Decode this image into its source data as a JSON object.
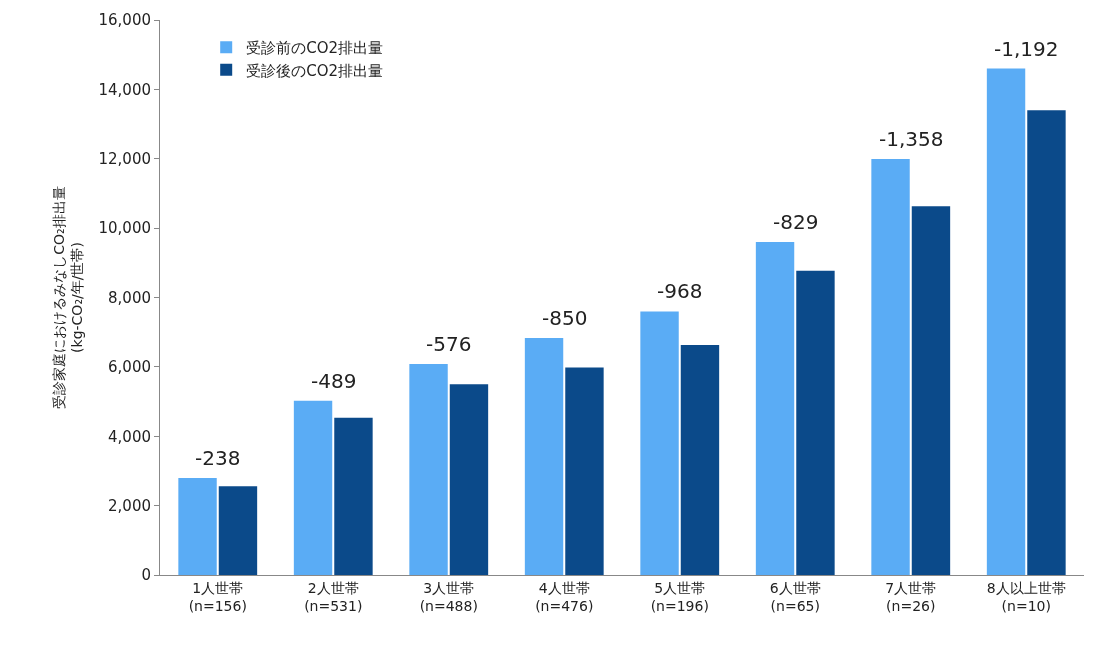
{
  "chart_data": {
    "type": "bar",
    "ylabel": "受診家庭におけるみなしCO₂排出量\n(kg-CO₂/年/世帯)",
    "categories": [
      "1人世帯\n(n=156)",
      "2人世帯\n(n=531)",
      "3人世帯\n(n=488)",
      "4人世帯\n(n=476)",
      "5人世帯\n(n=196)",
      "6人世帯\n(n=65)",
      "7人世帯\n(n=26)",
      "8人以上世帯\n(n=10)"
    ],
    "series": [
      {
        "name": "受診前のCO2排出量",
        "color": "#5aacf5",
        "values": [
          2800,
          5020,
          6080,
          6830,
          7600,
          9600,
          11990,
          14600
        ]
      },
      {
        "name": "受診後のCO2排出量",
        "color": "#0b4a8a",
        "values": [
          2560,
          4530,
          5500,
          5980,
          6630,
          8770,
          10630,
          13400
        ]
      }
    ],
    "annotations": [
      {
        "text": "-238",
        "x": "1人世帯\n(n=156)",
        "y": 2800
      },
      {
        "text": "-489",
        "x": "2人世帯\n(n=531)",
        "y": 5020
      },
      {
        "text": "-576",
        "x": "3人世帯\n(n=488)",
        "y": 6080
      },
      {
        "text": "-850",
        "x": "4人世帯\n(n=476)",
        "y": 6830
      },
      {
        "text": "-968",
        "x": "5人世帯\n(n=196)",
        "y": 7600
      },
      {
        "text": "-829",
        "x": "6人世帯\n(n=65)",
        "y": 9600
      },
      {
        "text": "-1,358",
        "x": "7人世帯\n(n=26)",
        "y": 11990
      },
      {
        "text": "-1,192",
        "x": "8人以上世帯\n(n=10)",
        "y": 14600
      }
    ],
    "ylim": [
      0,
      16000
    ],
    "yticks": [
      {
        "value": 0,
        "label": "0"
      },
      {
        "value": 2000,
        "label": "2,000"
      },
      {
        "value": 4000,
        "label": "4,000"
      },
      {
        "value": 6000,
        "label": "6,000"
      },
      {
        "value": 8000,
        "label": "8,000"
      },
      {
        "value": 10000,
        "label": "10,000"
      },
      {
        "value": 12000,
        "label": "12,000"
      },
      {
        "value": 14000,
        "label": "14,000"
      },
      {
        "value": 16000,
        "label": "16,000"
      }
    ],
    "grid": false,
    "legend": "top left"
  }
}
